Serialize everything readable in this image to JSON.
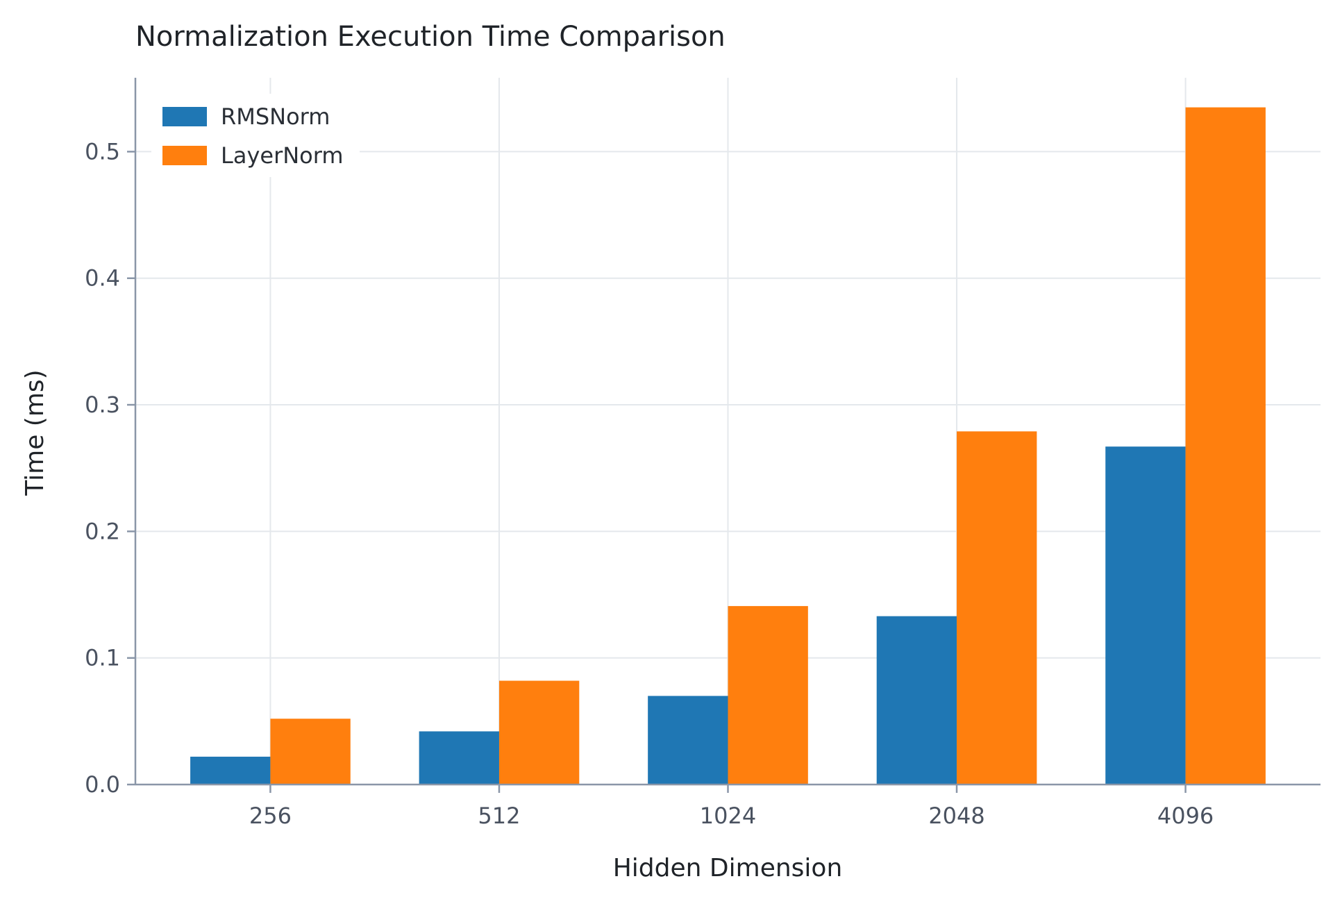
{
  "chart_data": {
    "type": "bar",
    "title": "Normalization Execution Time Comparison",
    "xlabel": "Hidden Dimension",
    "ylabel": "Time (ms)",
    "categories": [
      "256",
      "512",
      "1024",
      "2048",
      "4096"
    ],
    "series": [
      {
        "name": "RMSNorm",
        "color": "#1f77b4",
        "values": [
          0.022,
          0.042,
          0.07,
          0.133,
          0.267
        ]
      },
      {
        "name": "LayerNorm",
        "color": "#ff7f0e",
        "values": [
          0.052,
          0.082,
          0.141,
          0.279,
          0.535
        ]
      }
    ],
    "ylim": [
      0,
      0.55
    ],
    "yticks": [
      "0.0",
      "0.1",
      "0.2",
      "0.3",
      "0.4",
      "0.5"
    ],
    "grid": true,
    "legend_position": "top-left"
  }
}
